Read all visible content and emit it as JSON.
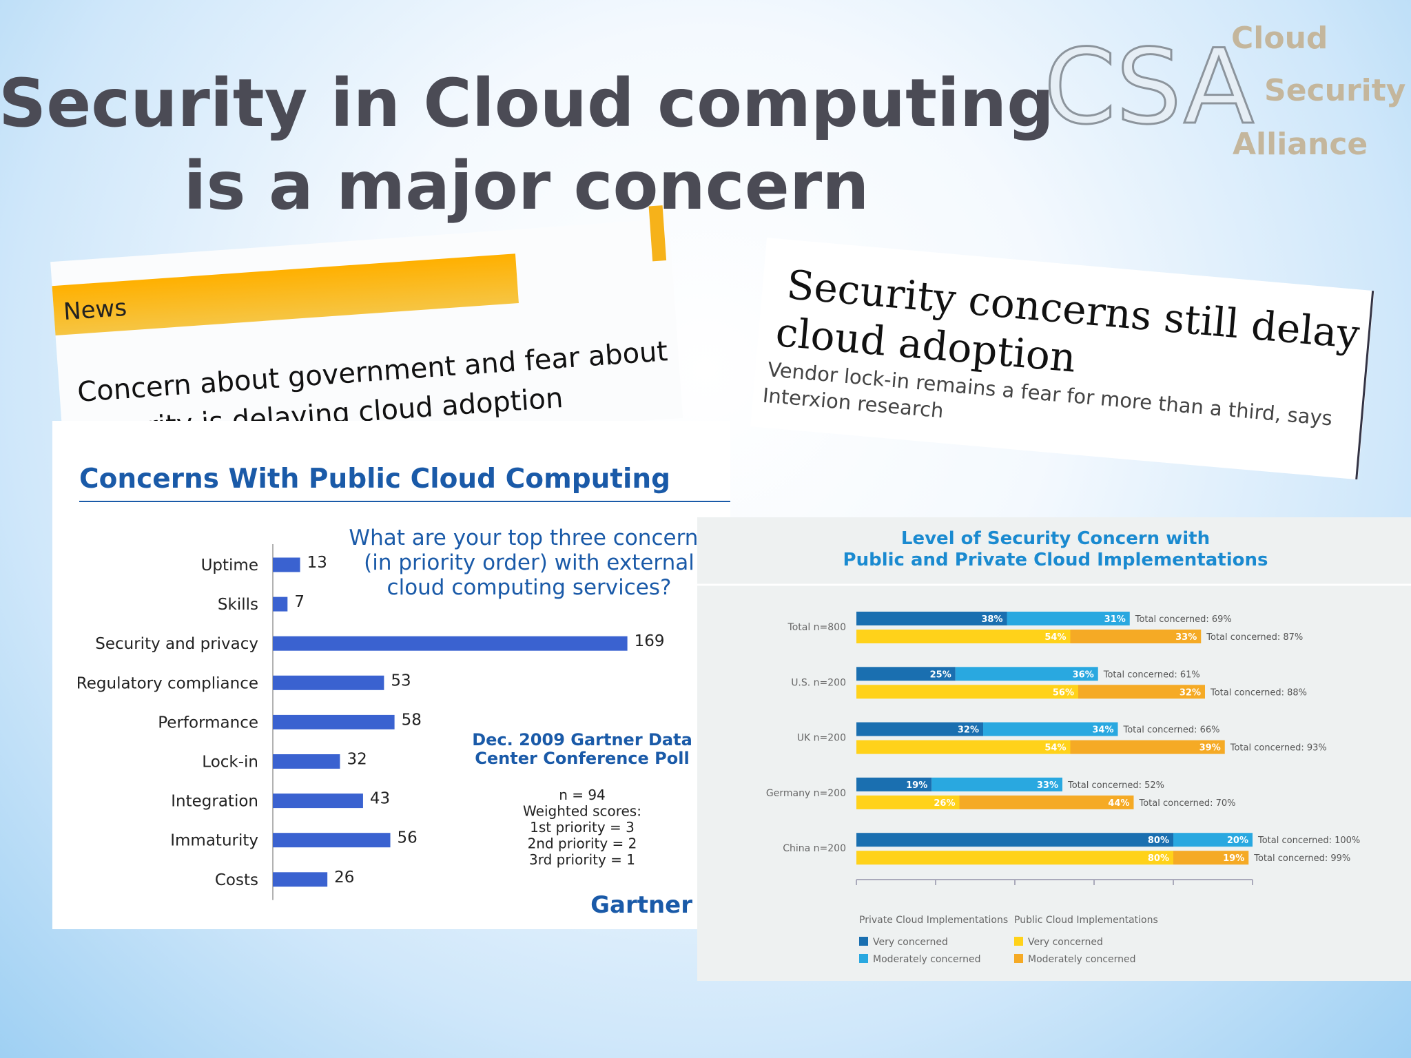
{
  "title": [
    "Security in Cloud computing",
    "is a major concern"
  ],
  "logo": {
    "acronym": "CSA",
    "words": [
      "Cloud",
      "Security",
      "Alliance"
    ]
  },
  "news_clipping": {
    "label": "News",
    "headline": [
      "Concern about government and fear about",
      "security is delaying cloud adoption"
    ]
  },
  "article_clipping": {
    "headline": [
      "Security concerns still delay",
      "cloud adoption"
    ],
    "subhead": [
      "Vendor lock-in remains a fear for more than a third, says",
      "Interxion research"
    ]
  },
  "chart_data": [
    {
      "type": "bar",
      "orientation": "horizontal",
      "title": "Concerns With Public Cloud Computing",
      "question": [
        "What are your top three concerns",
        "(in priority order) with external",
        "cloud computing services?"
      ],
      "source": [
        "Dec. 2009 Gartner Data",
        "Center Conference Poll"
      ],
      "notes": [
        "n = 94",
        "Weighted scores:",
        "1st priority = 3",
        "2nd priority = 2",
        "3rd priority = 1"
      ],
      "brand": "Gartner",
      "categories": [
        "Uptime",
        "Skills",
        "Security and privacy",
        "Regulatory compliance",
        "Performance",
        "Lock-in",
        "Integration",
        "Immaturity",
        "Costs"
      ],
      "values": [
        13,
        7,
        169,
        53,
        58,
        32,
        43,
        56,
        26
      ],
      "color": "#3a62d0",
      "xlim": [
        0,
        200
      ]
    },
    {
      "type": "grouped_stacked_bar",
      "orientation": "horizontal",
      "title": [
        "Level of Security Concern with",
        "Public and Private Cloud Implementations"
      ],
      "categories": [
        "Total n=800",
        "U.S. n=200",
        "UK n=200",
        "Germany n=200",
        "China n=200"
      ],
      "xlim": [
        0,
        100
      ],
      "xticks": [
        0,
        20,
        40,
        60,
        80,
        100
      ],
      "groups": [
        {
          "name": "Private Cloud Implementations",
          "series": [
            {
              "name": "Very concerned",
              "color": "#1a6fb0",
              "values": [
                38,
                25,
                32,
                19,
                80
              ],
              "value_labels": [
                "38%",
                "25%",
                "32%",
                "19%",
                "80%"
              ]
            },
            {
              "name": "Moderately concerned",
              "color": "#29a8e0",
              "values": [
                31,
                36,
                34,
                33,
                20
              ],
              "value_labels": [
                "31%",
                "36%",
                "34%",
                "33%",
                "20%"
              ]
            }
          ],
          "totals": {
            "values": [
              69,
              61,
              66,
              52,
              100
            ],
            "value_labels": [
              "Total concerned: 69%",
              "Total concerned: 61%",
              "Total concerned: 66%",
              "Total concerned: 52%",
              "Total concerned: 100%"
            ]
          }
        },
        {
          "name": "Public Cloud Implementations",
          "series": [
            {
              "name": "Very concerned",
              "color": "#ffd21a",
              "values": [
                54,
                56,
                54,
                26,
                80
              ],
              "value_labels": [
                "54%",
                "56%",
                "54%",
                "26%",
                "80%"
              ]
            },
            {
              "name": "Moderately concerned",
              "color": "#f5aa25",
              "values": [
                33,
                32,
                39,
                44,
                19
              ],
              "value_labels": [
                "33%",
                "32%",
                "39%",
                "44%",
                "19%"
              ]
            }
          ],
          "totals": {
            "values": [
              87,
              88,
              93,
              70,
              99
            ],
            "value_labels": [
              "Total concerned: 87%",
              "Total concerned: 88%",
              "Total concerned: 93%",
              "Total concerned: 70%",
              "Total concerned: 99%"
            ]
          }
        }
      ]
    }
  ]
}
